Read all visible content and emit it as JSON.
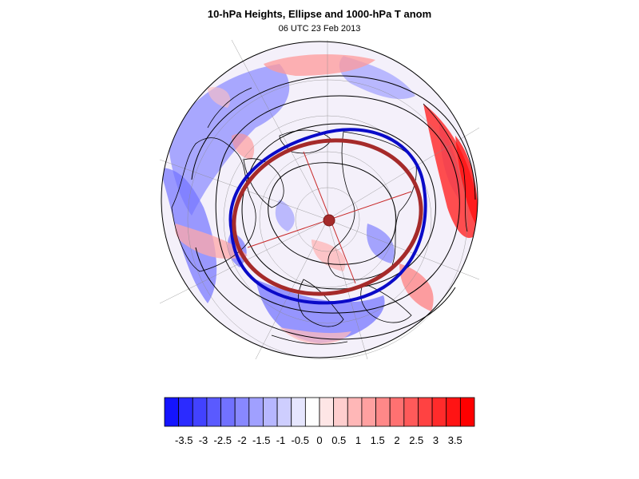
{
  "header": {
    "title": "10-hPa Heights, Ellipse and 1000-hPa T anom",
    "subtitle": "06 UTC 23 Feb 2013"
  },
  "map": {
    "projection": "north-polar-orthographic",
    "contour_color": "#000000",
    "polar_ellipse_color": "#0a0ac8",
    "fitted_ellipse_color": "#a52a2a",
    "ellipse_axis_color": "#c82828",
    "center_marker_color": "#a52a2a"
  },
  "colorbar": {
    "colors": [
      "#1414ff",
      "#2b2bff",
      "#4242ff",
      "#5a5aff",
      "#7171ff",
      "#8888ff",
      "#a0a0ff",
      "#b7b7ff",
      "#cecefe",
      "#e6e6fe",
      "#fefefe",
      "#fee6e6",
      "#fecece",
      "#ffb7b7",
      "#ffa0a0",
      "#ff8888",
      "#ff7171",
      "#ff5a5a",
      "#ff4242",
      "#ff2b2b",
      "#ff1414",
      "#ff0000"
    ],
    "tick_labels": [
      "-3.5",
      "-3",
      "-2.5",
      "-2",
      "-1.5",
      "-1",
      "-0.5",
      "0",
      "0.5",
      "1",
      "1.5",
      "2",
      "2.5",
      "3",
      "3.5"
    ]
  }
}
